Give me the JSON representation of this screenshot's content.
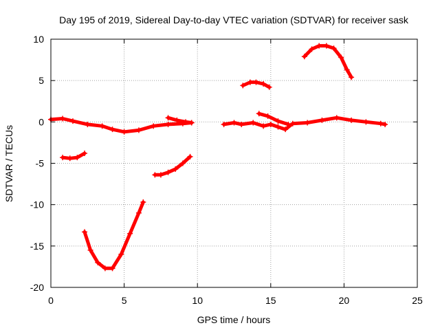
{
  "chart_data": {
    "type": "scatter",
    "title": "Day 195 of 2019, Sidereal Day-to-day VTEC variation (SDTVAR) for receiver sask",
    "xlabel": "GPS time / hours",
    "ylabel": "SDTVAR / TECUs",
    "xlim": [
      0,
      25
    ],
    "ylim": [
      -20,
      10
    ],
    "xticks": [
      0,
      5,
      10,
      15,
      20,
      25
    ],
    "yticks": [
      -20,
      -15,
      -10,
      -5,
      0,
      5,
      10
    ],
    "grid": true,
    "marker_color": "#ff0000",
    "series": [
      {
        "name": "arc-near-zero-1",
        "x": [
          0.0,
          0.8,
          1.5,
          2.5,
          3.5,
          4.2,
          5.0,
          6.0,
          7.0,
          8.0,
          9.0,
          9.6
        ],
        "y": [
          0.3,
          0.4,
          0.1,
          -0.3,
          -0.5,
          -0.9,
          -1.2,
          -1.0,
          -0.5,
          -0.3,
          -0.2,
          -0.1
        ]
      },
      {
        "name": "arc-near-zero-2",
        "x": [
          8.0,
          8.6,
          9.2,
          9.6
        ],
        "y": [
          0.5,
          0.2,
          0.0,
          -0.1
        ]
      },
      {
        "name": "arc-low-short",
        "x": [
          0.8,
          1.3,
          1.8,
          2.3
        ],
        "y": [
          -4.3,
          -4.4,
          -4.3,
          -3.8
        ]
      },
      {
        "name": "arc-deep-dip",
        "x": [
          2.3,
          2.7,
          3.2,
          3.7,
          4.2,
          4.8,
          5.4,
          6.0,
          6.3
        ],
        "y": [
          -13.3,
          -15.5,
          -17.0,
          -17.7,
          -17.7,
          -16.0,
          -13.5,
          -11.0,
          -9.7
        ]
      },
      {
        "name": "arc-rising",
        "x": [
          7.1,
          7.5,
          8.0,
          8.5,
          9.0,
          9.5
        ],
        "y": [
          -6.4,
          -6.4,
          -6.1,
          -5.7,
          -5.0,
          -4.2
        ]
      },
      {
        "name": "arc-near-zero-3",
        "x": [
          11.8,
          12.5,
          13.0,
          13.8,
          14.5,
          15.0,
          15.5,
          16.0,
          16.5,
          17.5,
          18.5,
          19.5,
          20.5,
          21.5,
          22.5,
          22.8
        ],
        "y": [
          -0.3,
          -0.1,
          -0.3,
          -0.1,
          -0.5,
          -0.3,
          -0.6,
          -0.9,
          -0.2,
          -0.1,
          0.2,
          0.5,
          0.2,
          0.0,
          -0.2,
          -0.3
        ]
      },
      {
        "name": "arc-near-zero-4",
        "x": [
          14.2,
          14.8,
          15.5,
          16.2
        ],
        "y": [
          1.0,
          0.7,
          0.1,
          -0.3
        ]
      },
      {
        "name": "arc-mid-hump",
        "x": [
          13.1,
          13.6,
          14.0,
          14.5,
          14.9
        ],
        "y": [
          4.4,
          4.8,
          4.8,
          4.6,
          4.2
        ]
      },
      {
        "name": "arc-high-hump",
        "x": [
          17.3,
          17.8,
          18.3,
          18.8,
          19.3,
          19.8,
          20.2,
          20.5
        ],
        "y": [
          7.9,
          8.8,
          9.2,
          9.2,
          8.9,
          7.8,
          6.3,
          5.4
        ]
      }
    ]
  }
}
